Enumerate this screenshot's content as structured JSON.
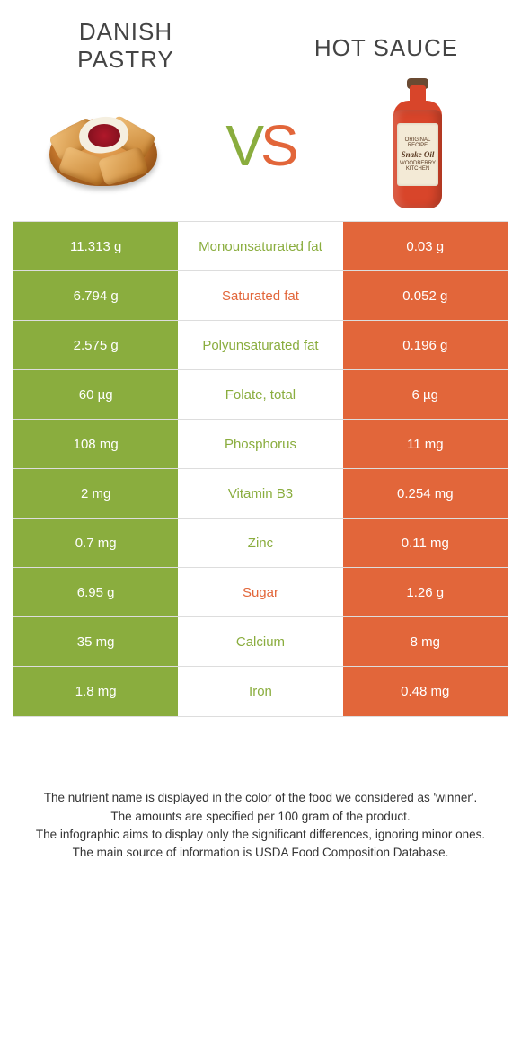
{
  "colors": {
    "left": "#8aad3e",
    "right": "#e2663a",
    "text": "#444444"
  },
  "header": {
    "left_title": "Danish pastry",
    "right_title": "Hot sauce",
    "vs_v": "V",
    "vs_s": "S"
  },
  "table": {
    "rows": [
      {
        "left": "11.313 g",
        "label": "Monounsaturated fat",
        "label_color": "#8aad3e",
        "right": "0.03 g"
      },
      {
        "left": "6.794 g",
        "label": "Saturated fat",
        "label_color": "#e2663a",
        "right": "0.052 g"
      },
      {
        "left": "2.575 g",
        "label": "Polyunsaturated fat",
        "label_color": "#8aad3e",
        "right": "0.196 g"
      },
      {
        "left": "60 µg",
        "label": "Folate, total",
        "label_color": "#8aad3e",
        "right": "6 µg"
      },
      {
        "left": "108 mg",
        "label": "Phosphorus",
        "label_color": "#8aad3e",
        "right": "11 mg"
      },
      {
        "left": "2 mg",
        "label": "Vitamin B3",
        "label_color": "#8aad3e",
        "right": "0.254 mg"
      },
      {
        "left": "0.7 mg",
        "label": "Zinc",
        "label_color": "#8aad3e",
        "right": "0.11 mg"
      },
      {
        "left": "6.95 g",
        "label": "Sugar",
        "label_color": "#e2663a",
        "right": "1.26 g"
      },
      {
        "left": "35 mg",
        "label": "Calcium",
        "label_color": "#8aad3e",
        "right": "8 mg"
      },
      {
        "left": "1.8 mg",
        "label": "Iron",
        "label_color": "#8aad3e",
        "right": "0.48 mg"
      }
    ]
  },
  "footer": {
    "line1": "The nutrient name is displayed in the color of the food we considered as 'winner'.",
    "line2": "The amounts are specified per 100 gram of the product.",
    "line3": "The infographic aims to display only the significant differences, ignoring minor ones.",
    "line4": "The main source of information is USDA Food Composition Database."
  },
  "bottle_label": {
    "top": "ORIGINAL RECIPE",
    "brand": "Snake Oil",
    "bottom": "WOODBERRY KITCHEN"
  }
}
